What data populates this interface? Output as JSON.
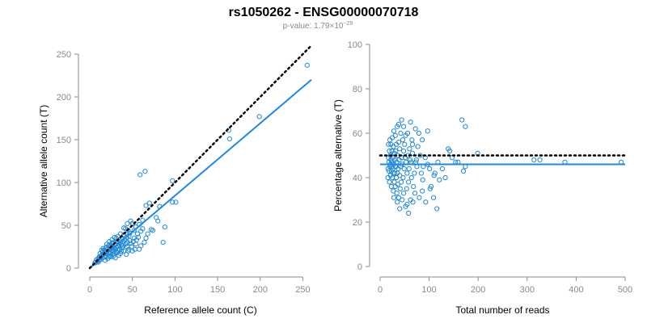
{
  "title": "rs1050262 - ENSG00000070718",
  "subtitle": {
    "prefix": "p-value: 1.79×10",
    "exponent": "−29"
  },
  "colors": {
    "points": "#1f88d6",
    "fit": "#1e88e5",
    "reference": "#000000",
    "axis": "#8a8a8a"
  },
  "chart_data": [
    {
      "type": "scatter",
      "xlabel": "Reference allele count (C)",
      "ylabel": "Alternative allele count (T)",
      "xlim": [
        0,
        260
      ],
      "ylim": [
        0,
        250
      ],
      "xticks": [
        0,
        50,
        100,
        150,
        200,
        250
      ],
      "yticks": [
        0,
        50,
        100,
        150,
        200,
        250
      ],
      "reference_line": {
        "style": "dotted",
        "points": [
          [
            0,
            0
          ],
          [
            260,
            260
          ]
        ]
      },
      "fit_line": {
        "style": "solid",
        "points": [
          [
            0,
            0
          ],
          [
            260,
            220
          ]
        ]
      },
      "points": [
        [
          255,
          237
        ],
        [
          199,
          177
        ],
        [
          163,
          161
        ],
        [
          164,
          151
        ],
        [
          97,
          102
        ],
        [
          97,
          77
        ],
        [
          101,
          77
        ],
        [
          65,
          113
        ],
        [
          59,
          109
        ],
        [
          82,
          72
        ],
        [
          70,
          76
        ],
        [
          66,
          73
        ],
        [
          78,
          59
        ],
        [
          86,
          30
        ],
        [
          62,
          56
        ],
        [
          58,
          51
        ],
        [
          54,
          48
        ],
        [
          60,
          43
        ],
        [
          72,
          45
        ],
        [
          56,
          40
        ],
        [
          66,
          35
        ],
        [
          50,
          52
        ],
        [
          48,
          55
        ],
        [
          52,
          44
        ],
        [
          45,
          44
        ],
        [
          42,
          46
        ],
        [
          46,
          38
        ],
        [
          40,
          39
        ],
        [
          38,
          34
        ],
        [
          36,
          30
        ],
        [
          41,
          33
        ],
        [
          44,
          30
        ],
        [
          39,
          26
        ],
        [
          48,
          29
        ],
        [
          52,
          35
        ],
        [
          54,
          28
        ],
        [
          64,
          30
        ],
        [
          60,
          26
        ],
        [
          58,
          22
        ],
        [
          50,
          20
        ],
        [
          46,
          22
        ],
        [
          35,
          22
        ],
        [
          33,
          26
        ],
        [
          31,
          24
        ],
        [
          30,
          28
        ],
        [
          28,
          23
        ],
        [
          27,
          20
        ],
        [
          25,
          25
        ],
        [
          24,
          19
        ],
        [
          22,
          18
        ],
        [
          21,
          22
        ],
        [
          20,
          17
        ],
        [
          19,
          14
        ],
        [
          18,
          20
        ],
        [
          17,
          13
        ],
        [
          16,
          16
        ],
        [
          15,
          12
        ],
        [
          14,
          15
        ],
        [
          13,
          10
        ],
        [
          12,
          12
        ],
        [
          11,
          9
        ],
        [
          10,
          11
        ],
        [
          9,
          8
        ],
        [
          8,
          10
        ],
        [
          7,
          7
        ],
        [
          6,
          6
        ],
        [
          23,
          27
        ],
        [
          26,
          29
        ],
        [
          29,
          17
        ],
        [
          32,
          18
        ],
        [
          34,
          15
        ],
        [
          37,
          20
        ],
        [
          30,
          12
        ],
        [
          28,
          30
        ],
        [
          36,
          40
        ],
        [
          40,
          20
        ],
        [
          43,
          16
        ],
        [
          25,
          13
        ],
        [
          22,
          26
        ],
        [
          19,
          24
        ],
        [
          33,
          37
        ],
        [
          31,
          35
        ],
        [
          44,
          25
        ],
        [
          47,
          32
        ],
        [
          53,
          22
        ],
        [
          57,
          36
        ],
        [
          62,
          46
        ],
        [
          68,
          40
        ],
        [
          74,
          44
        ],
        [
          80,
          55
        ],
        [
          88,
          48
        ],
        [
          15,
          19
        ],
        [
          18,
          9
        ],
        [
          21,
          11
        ],
        [
          24,
          14
        ],
        [
          27,
          16
        ],
        [
          16,
          23
        ],
        [
          14,
          21
        ],
        [
          12,
          17
        ],
        [
          26,
          33
        ],
        [
          29,
          36
        ],
        [
          34,
          28
        ],
        [
          38,
          24
        ],
        [
          42,
          28
        ],
        [
          35,
          33
        ],
        [
          32,
          31
        ],
        [
          20,
          28
        ],
        [
          23,
          31
        ],
        [
          26,
          21
        ],
        [
          28,
          14
        ],
        [
          31,
          19
        ],
        [
          33,
          21
        ],
        [
          37,
          27
        ],
        [
          39,
          31
        ],
        [
          43,
          36
        ],
        [
          47,
          41
        ],
        [
          49,
          25
        ],
        [
          51,
          31
        ],
        [
          55,
          33
        ],
        [
          40,
          47
        ],
        [
          44,
          52
        ],
        [
          24,
          22
        ],
        [
          22,
          13
        ],
        [
          19,
          18
        ],
        [
          17,
          21
        ],
        [
          13,
          14
        ],
        [
          11,
          13
        ],
        [
          10,
          7
        ],
        [
          27,
          25
        ],
        [
          30,
          22
        ],
        [
          36,
          17
        ],
        [
          45,
          20
        ]
      ]
    },
    {
      "type": "scatter",
      "xlabel": "Total number of reads",
      "ylabel": "Percentage alternative (T)",
      "xlim": [
        0,
        500
      ],
      "ylim": [
        0,
        100
      ],
      "xticks": [
        0,
        100,
        200,
        300,
        400,
        500
      ],
      "yticks": [
        0,
        20,
        40,
        60,
        80,
        100
      ],
      "reference_line": {
        "style": "dotted",
        "points": [
          [
            0,
            50
          ],
          [
            500,
            50
          ]
        ]
      },
      "fit_line": {
        "style": "solid",
        "points": [
          [
            0,
            46
          ],
          [
            500,
            46
          ]
        ]
      },
      "points": [
        [
          492,
          47
        ],
        [
          377,
          47
        ],
        [
          326,
          48
        ],
        [
          314,
          48
        ],
        [
          199,
          51
        ],
        [
          174,
          63
        ],
        [
          167,
          66
        ],
        [
          174,
          45
        ],
        [
          170,
          43
        ],
        [
          154,
          47
        ],
        [
          139,
          53
        ],
        [
          142,
          52
        ],
        [
          127,
          44
        ],
        [
          116,
          26
        ],
        [
          118,
          47
        ],
        [
          112,
          42
        ],
        [
          109,
          31
        ],
        [
          110,
          41
        ],
        [
          102,
          35
        ],
        [
          101,
          44
        ],
        [
          97,
          46
        ],
        [
          97,
          61
        ],
        [
          92,
          49
        ],
        [
          88,
          45
        ],
        [
          86,
          34
        ],
        [
          84,
          42
        ],
        [
          82,
          50
        ],
        [
          80,
          31
        ],
        [
          79,
          60
        ],
        [
          77,
          54
        ],
        [
          74,
          48
        ],
        [
          73,
          47
        ],
        [
          72,
          62
        ],
        [
          70,
          42
        ],
        [
          68,
          36
        ],
        [
          66,
          51
        ],
        [
          65,
          57
        ],
        [
          64,
          40
        ],
        [
          63,
          47
        ],
        [
          62,
          30
        ],
        [
          61,
          48
        ],
        [
          60,
          53
        ],
        [
          59,
          44
        ],
        [
          58,
          38
        ],
        [
          57,
          50
        ],
        [
          56,
          60
        ],
        [
          55,
          42
        ],
        [
          54,
          35
        ],
        [
          53,
          47
        ],
        [
          52,
          27
        ],
        [
          51,
          49
        ],
        [
          50,
          55
        ],
        [
          49,
          44
        ],
        [
          48,
          33
        ],
        [
          48,
          52
        ],
        [
          47,
          40
        ],
        [
          46,
          57
        ],
        [
          45,
          46
        ],
        [
          45,
          30
        ],
        [
          44,
          49
        ],
        [
          43,
          38
        ],
        [
          42,
          60
        ],
        [
          42,
          45
        ],
        [
          41,
          35
        ],
        [
          40,
          53
        ],
        [
          40,
          41
        ],
        [
          39,
          48
        ],
        [
          38,
          31
        ],
        [
          38,
          56
        ],
        [
          37,
          44
        ],
        [
          36,
          50
        ],
        [
          36,
          37
        ],
        [
          35,
          63
        ],
        [
          35,
          42
        ],
        [
          34,
          47
        ],
        [
          34,
          33
        ],
        [
          33,
          55
        ],
        [
          33,
          40
        ],
        [
          32,
          52
        ],
        [
          32,
          45
        ],
        [
          31,
          36
        ],
        [
          31,
          59
        ],
        [
          30,
          48
        ],
        [
          30,
          42
        ],
        [
          29,
          51
        ],
        [
          29,
          38
        ],
        [
          28,
          61
        ],
        [
          28,
          46
        ],
        [
          27,
          34
        ],
        [
          27,
          54
        ],
        [
          26,
          44
        ],
        [
          26,
          49
        ],
        [
          25,
          58
        ],
        [
          25,
          40
        ],
        [
          24,
          47
        ],
        [
          24,
          52
        ],
        [
          23,
          36
        ],
        [
          23,
          43
        ],
        [
          22,
          55
        ],
        [
          22,
          48
        ],
        [
          21,
          41
        ],
        [
          21,
          50
        ],
        [
          20,
          45
        ],
        [
          20,
          57
        ],
        [
          19,
          38
        ],
        [
          19,
          52
        ],
        [
          18,
          47
        ],
        [
          18,
          43
        ],
        [
          17,
          49
        ],
        [
          17,
          55
        ],
        [
          16,
          44
        ],
        [
          16,
          40
        ],
        [
          58,
          24
        ],
        [
          55,
          28
        ],
        [
          67,
          29
        ],
        [
          71,
          33
        ],
        [
          75,
          45
        ],
        [
          87,
          39
        ],
        [
          93,
          29
        ],
        [
          104,
          36
        ],
        [
          121,
          39
        ],
        [
          133,
          40
        ],
        [
          147,
          49
        ],
        [
          159,
          47
        ],
        [
          62,
          65
        ],
        [
          48,
          63
        ],
        [
          44,
          66
        ],
        [
          38,
          64
        ],
        [
          52,
          59
        ],
        [
          66,
          55
        ],
        [
          86,
          57
        ],
        [
          40,
          26
        ],
        [
          35,
          29
        ],
        [
          28,
          31
        ],
        [
          31,
          45
        ],
        [
          27,
          42
        ],
        [
          24,
          45
        ],
        [
          21,
          46
        ]
      ]
    }
  ]
}
